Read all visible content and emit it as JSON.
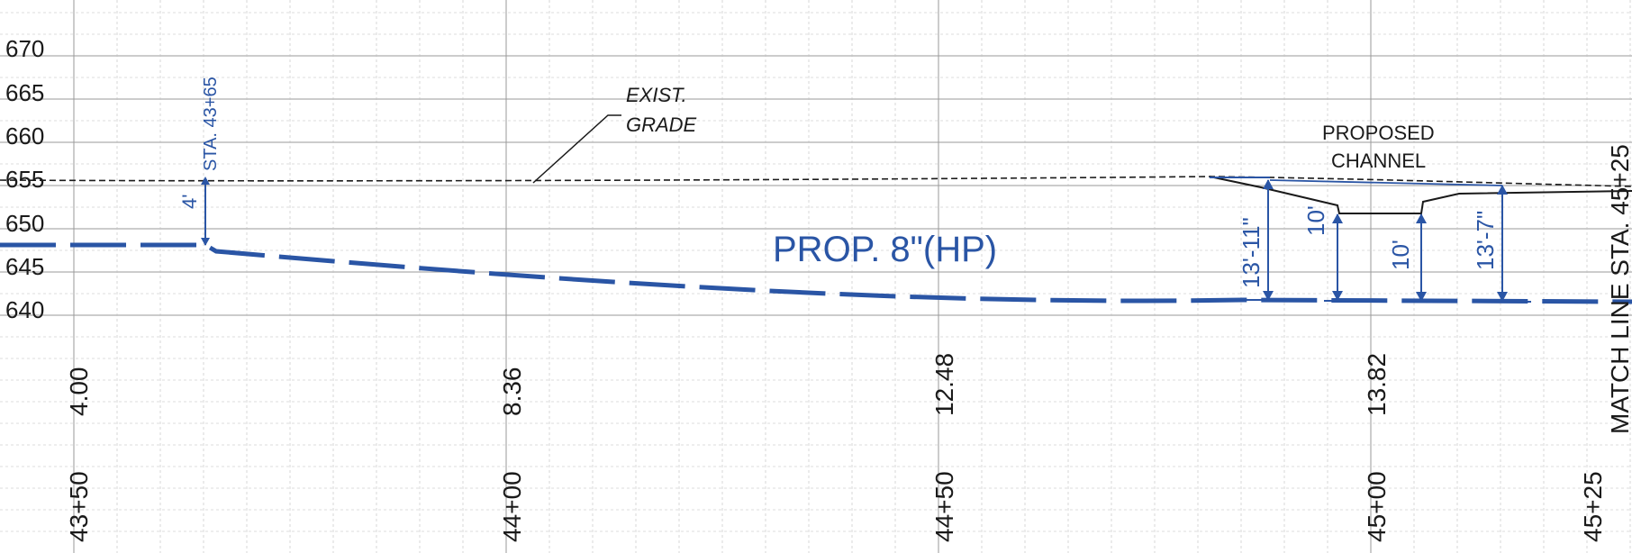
{
  "colors": {
    "grid": "#bdbdbd",
    "grid_major": "#9a9a9a",
    "ink": "#1a1a1a",
    "blue": "#2a55a5"
  },
  "elevations": [
    "670",
    "665",
    "660",
    "655",
    "650",
    "645",
    "640"
  ],
  "stations": [
    "43+50",
    "44+00",
    "44+50",
    "45+00",
    "45+25"
  ],
  "depths": [
    "4.00",
    "8.36",
    "12.48",
    "13.82"
  ],
  "annotations": {
    "sta_marker": "STA. 43+65",
    "sta_marker_depth": "4'",
    "exist_grade_line1": "EXIST.",
    "exist_grade_line2": "GRADE",
    "proposed_channel_line1": "PROPOSED",
    "proposed_channel_line2": "CHANNEL",
    "pipe_label": "PROP. 8\"(HP)",
    "dim_13_11": "13'-11\"",
    "dim_10_left": "10'",
    "dim_10_right": "10'",
    "dim_13_7": "13'-7\"",
    "match_line": "MATCH LINE STA. 45+25"
  }
}
